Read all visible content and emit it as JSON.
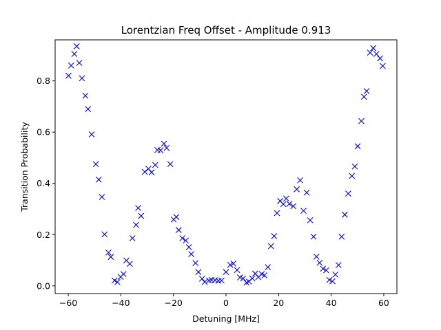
{
  "chart_data": {
    "type": "scatter",
    "title": "Lorentzian Freq Offset - Amplitude 0.913",
    "xlabel": "Detuning [MHz]",
    "ylabel": "Transition Probability",
    "xlim": [
      -65,
      65
    ],
    "ylim": [
      -0.03,
      0.96
    ],
    "xticks": [
      -60,
      -40,
      -20,
      0,
      20,
      40,
      60
    ],
    "yticks": [
      0.0,
      0.2,
      0.4,
      0.6,
      0.8
    ],
    "ytick_labels": [
      "0.0",
      "0.2",
      "0.4",
      "0.6",
      "0.8"
    ],
    "grid": false,
    "marker": "x",
    "color": "#0000ff",
    "series": [
      {
        "points": [
          [
            -59.9,
            0.82
          ],
          [
            -58.9,
            0.86
          ],
          [
            -57.7,
            0.905
          ],
          [
            -56.8,
            0.935
          ],
          [
            -55.8,
            0.87
          ],
          [
            -54.8,
            0.81
          ],
          [
            -53.5,
            0.742
          ],
          [
            -52.5,
            0.69
          ],
          [
            -51.1,
            0.591
          ],
          [
            -49.5,
            0.475
          ],
          [
            -48.4,
            0.415
          ],
          [
            -47.2,
            0.347
          ],
          [
            -46.2,
            0.201
          ],
          [
            -44.7,
            0.13
          ],
          [
            -43.8,
            0.113
          ],
          [
            -42.4,
            0.021
          ],
          [
            -41.3,
            0.015
          ],
          [
            -40.1,
            0.035
          ],
          [
            -39.0,
            0.046
          ],
          [
            -37.9,
            0.099
          ],
          [
            -36.6,
            0.086
          ],
          [
            -35.6,
            0.186
          ],
          [
            -34.2,
            0.238
          ],
          [
            -33.4,
            0.304
          ],
          [
            -32.3,
            0.273
          ],
          [
            -30.9,
            0.445
          ],
          [
            -29.5,
            0.457
          ],
          [
            -28.3,
            0.443
          ],
          [
            -26.9,
            0.472
          ],
          [
            -26.1,
            0.53
          ],
          [
            -24.9,
            0.529
          ],
          [
            -23.6,
            0.555
          ],
          [
            -22.6,
            0.538
          ],
          [
            -21.2,
            0.475
          ],
          [
            -19.9,
            0.259
          ],
          [
            -18.9,
            0.269
          ],
          [
            -18.0,
            0.218
          ],
          [
            -16.6,
            0.186
          ],
          [
            -15.3,
            0.177
          ],
          [
            -14.1,
            0.151
          ],
          [
            -13.2,
            0.124
          ],
          [
            -11.6,
            0.089
          ],
          [
            -10.5,
            0.054
          ],
          [
            -9.1,
            0.028
          ],
          [
            -8.1,
            0.015
          ],
          [
            -6.5,
            0.021
          ],
          [
            -5.5,
            0.023
          ],
          [
            -4.2,
            0.022
          ],
          [
            -2.9,
            0.02
          ],
          [
            -1.7,
            0.021
          ],
          [
            0.0,
            0.054
          ],
          [
            1.6,
            0.082
          ],
          [
            2.8,
            0.087
          ],
          [
            4.2,
            0.062
          ],
          [
            5.3,
            0.033
          ],
          [
            6.5,
            0.029
          ],
          [
            7.8,
            0.013
          ],
          [
            8.7,
            0.017
          ],
          [
            10.0,
            0.029
          ],
          [
            11.1,
            0.048
          ],
          [
            12.3,
            0.034
          ],
          [
            13.6,
            0.046
          ],
          [
            14.6,
            0.041
          ],
          [
            15.9,
            0.073
          ],
          [
            17.1,
            0.155
          ],
          [
            18.3,
            0.194
          ],
          [
            19.4,
            0.284
          ],
          [
            20.6,
            0.331
          ],
          [
            21.8,
            0.319
          ],
          [
            22.9,
            0.341
          ],
          [
            24.1,
            0.32
          ],
          [
            25.6,
            0.311
          ],
          [
            26.9,
            0.377
          ],
          [
            28.2,
            0.412
          ],
          [
            29.5,
            0.293
          ],
          [
            30.7,
            0.364
          ],
          [
            32.0,
            0.256
          ],
          [
            33.3,
            0.192
          ],
          [
            34.4,
            0.114
          ],
          [
            35.6,
            0.09
          ],
          [
            36.9,
            0.067
          ],
          [
            38.1,
            0.061
          ],
          [
            39.3,
            0.023
          ],
          [
            40.5,
            0.018
          ],
          [
            41.6,
            0.044
          ],
          [
            42.8,
            0.081
          ],
          [
            44.0,
            0.192
          ],
          [
            45.2,
            0.278
          ],
          [
            46.5,
            0.36
          ],
          [
            47.9,
            0.429
          ],
          [
            49.0,
            0.466
          ],
          [
            50.1,
            0.545
          ],
          [
            51.5,
            0.643
          ],
          [
            52.5,
            0.738
          ],
          [
            53.5,
            0.76
          ],
          [
            54.8,
            0.91
          ],
          [
            56.0,
            0.928
          ],
          [
            57.2,
            0.905
          ],
          [
            58.6,
            0.888
          ],
          [
            59.6,
            0.858
          ]
        ]
      }
    ]
  }
}
